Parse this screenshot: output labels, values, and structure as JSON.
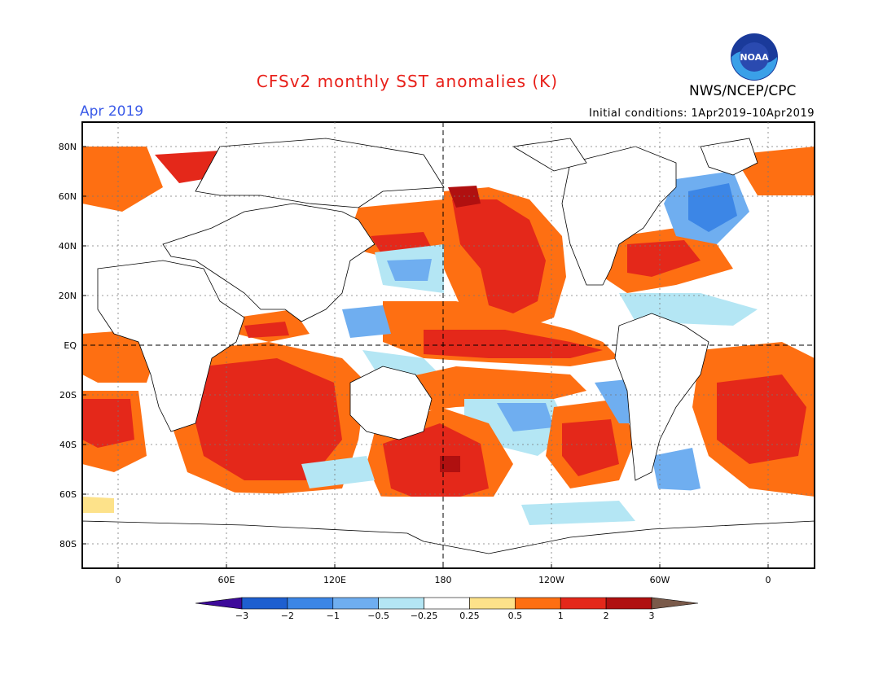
{
  "header": {
    "title": "CFSv2 monthly SST anomalies (K)",
    "period": "Apr 2019",
    "initial_conditions": "Initial conditions: 1Apr2019–10Apr2019",
    "agency": "NWS/NCEP/CPC",
    "logo_text": "NOAA"
  },
  "map": {
    "variable": "SST anomaly",
    "units": "K",
    "lat_labels": [
      "80N",
      "60N",
      "40N",
      "20N",
      "EQ",
      "20S",
      "40S",
      "60S",
      "80S"
    ],
    "lon_labels": [
      "0",
      "60E",
      "120E",
      "180",
      "120W",
      "60W",
      "0"
    ]
  },
  "colorbar": {
    "labels": [
      "−3",
      "−2",
      "−1",
      "−0.5",
      "−0.25",
      "0.25",
      "0.5",
      "1",
      "2",
      "3"
    ],
    "colors": [
      "#3d0a9a",
      "#1e5fd0",
      "#3c86e6",
      "#6faef0",
      "#b4e6f4",
      "#ffffff",
      "#fde28a",
      "#fe6f12",
      "#e4281a",
      "#b01010",
      "#7a5a4a"
    ]
  }
}
